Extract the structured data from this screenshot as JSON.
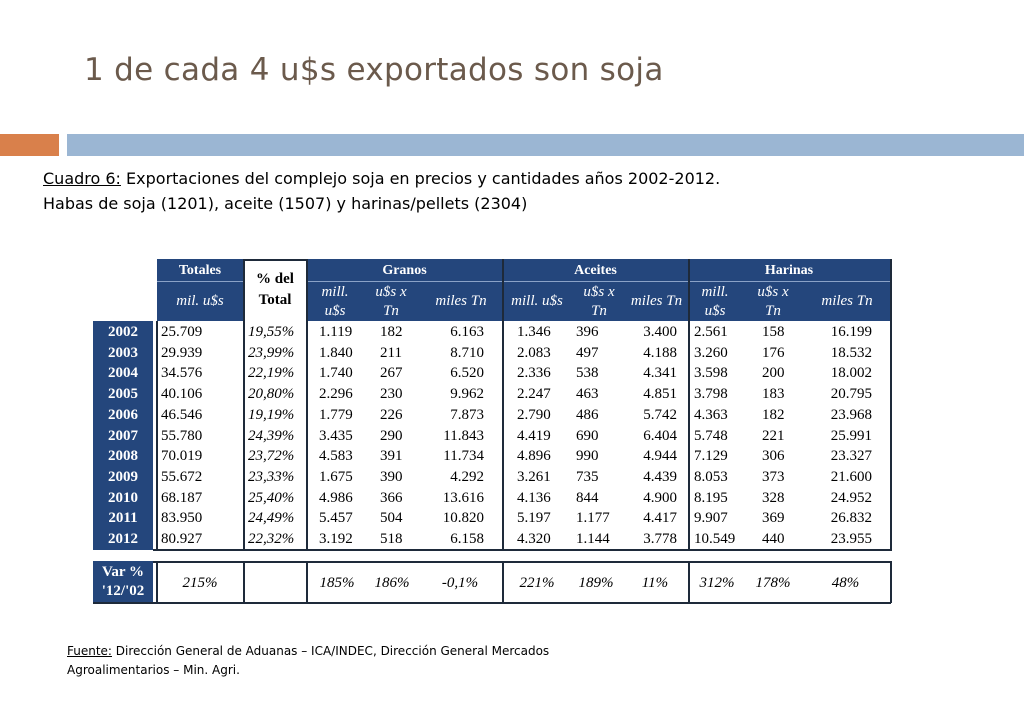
{
  "title": "1 de cada 4 u$s exportados son soja",
  "caption": {
    "label": "Cuadro 6:",
    "text": " Exportaciones del complejo soja en precios y cantidades años 2002-2012. Habas de soja (1201), aceite (1507) y harinas/pellets (2304)"
  },
  "table": {
    "groups": {
      "totales": "Totales",
      "pct_line1": "% del",
      "pct_line2": "Total",
      "granos": "Granos",
      "aceites": "Aceites",
      "harinas": "Harinas"
    },
    "subheaders": {
      "totales_unit": "mil. u$s",
      "mill_line1": "mill.",
      "mill_line2": "u$s",
      "usx_line1": "u$s x",
      "usx_line2": "Tn",
      "miles": "miles Tn",
      "mill_us": "mill. u$s"
    },
    "rows": [
      {
        "year": "2002",
        "total": "25.709",
        "pct": "19,55%",
        "g_mill": "1.119",
        "g_usx": "182",
        "g_miles": "6.163",
        "a_mill": "1.346",
        "a_usx": "396",
        "a_miles": "3.400",
        "h_mill": "2.561",
        "h_usx": "158",
        "h_miles": "16.199"
      },
      {
        "year": "2003",
        "total": "29.939",
        "pct": "23,99%",
        "g_mill": "1.840",
        "g_usx": "211",
        "g_miles": "8.710",
        "a_mill": "2.083",
        "a_usx": "497",
        "a_miles": "4.188",
        "h_mill": "3.260",
        "h_usx": "176",
        "h_miles": "18.532"
      },
      {
        "year": "2004",
        "total": "34.576",
        "pct": "22,19%",
        "g_mill": "1.740",
        "g_usx": "267",
        "g_miles": "6.520",
        "a_mill": "2.336",
        "a_usx": "538",
        "a_miles": "4.341",
        "h_mill": "3.598",
        "h_usx": "200",
        "h_miles": "18.002"
      },
      {
        "year": "2005",
        "total": "40.106",
        "pct": "20,80%",
        "g_mill": "2.296",
        "g_usx": "230",
        "g_miles": "9.962",
        "a_mill": "2.247",
        "a_usx": "463",
        "a_miles": "4.851",
        "h_mill": "3.798",
        "h_usx": "183",
        "h_miles": "20.795"
      },
      {
        "year": "2006",
        "total": "46.546",
        "pct": "19,19%",
        "g_mill": "1.779",
        "g_usx": "226",
        "g_miles": "7.873",
        "a_mill": "2.790",
        "a_usx": "486",
        "a_miles": "5.742",
        "h_mill": "4.363",
        "h_usx": "182",
        "h_miles": "23.968"
      },
      {
        "year": "2007",
        "total": "55.780",
        "pct": "24,39%",
        "g_mill": "3.435",
        "g_usx": "290",
        "g_miles": "11.843",
        "a_mill": "4.419",
        "a_usx": "690",
        "a_miles": "6.404",
        "h_mill": "5.748",
        "h_usx": "221",
        "h_miles": "25.991"
      },
      {
        "year": "2008",
        "total": "70.019",
        "pct": "23,72%",
        "g_mill": "4.583",
        "g_usx": "391",
        "g_miles": "11.734",
        "a_mill": "4.896",
        "a_usx": "990",
        "a_miles": "4.944",
        "h_mill": "7.129",
        "h_usx": "306",
        "h_miles": "23.327"
      },
      {
        "year": "2009",
        "total": "55.672",
        "pct": "23,33%",
        "g_mill": "1.675",
        "g_usx": "390",
        "g_miles": "4.292",
        "a_mill": "3.261",
        "a_usx": "735",
        "a_miles": "4.439",
        "h_mill": "8.053",
        "h_usx": "373",
        "h_miles": "21.600"
      },
      {
        "year": "2010",
        "total": "68.187",
        "pct": "25,40%",
        "g_mill": "4.986",
        "g_usx": "366",
        "g_miles": "13.616",
        "a_mill": "4.136",
        "a_usx": "844",
        "a_miles": "4.900",
        "h_mill": "8.195",
        "h_usx": "328",
        "h_miles": "24.952"
      },
      {
        "year": "2011",
        "total": "83.950",
        "pct": "24,49%",
        "g_mill": "5.457",
        "g_usx": "504",
        "g_miles": "10.820",
        "a_mill": "5.197",
        "a_usx": "1.177",
        "a_miles": "4.417",
        "h_mill": "9.907",
        "h_usx": "369",
        "h_miles": "26.832"
      },
      {
        "year": "2012",
        "total": "80.927",
        "pct": "22,32%",
        "g_mill": "3.192",
        "g_usx": "518",
        "g_miles": "6.158",
        "a_mill": "4.320",
        "a_usx": "1.144",
        "a_miles": "3.778",
        "h_mill": "10.549",
        "h_usx": "440",
        "h_miles": "23.955"
      }
    ],
    "var": {
      "label_line1": "Var %",
      "label_line2": "'12/'02",
      "total": "215%",
      "pct": "",
      "g_mill": "185%",
      "g_usx": "186%",
      "g_miles": "-0,1%",
      "a_mill": "221%",
      "a_usx": "189%",
      "a_miles": "11%",
      "h_mill": "312%",
      "h_usx": "178%",
      "h_miles": "48%"
    }
  },
  "source": {
    "label": "Fuente:",
    "text": " Dirección General de Aduanas – ICA/INDEC, Dirección General Mercados Agroalimentarios – Min. Agri."
  },
  "colors": {
    "header_blue": "#24467c",
    "title_brown": "#6b5a4c",
    "accent_orange": "#d9804b",
    "accent_blue": "#9bb6d3"
  }
}
